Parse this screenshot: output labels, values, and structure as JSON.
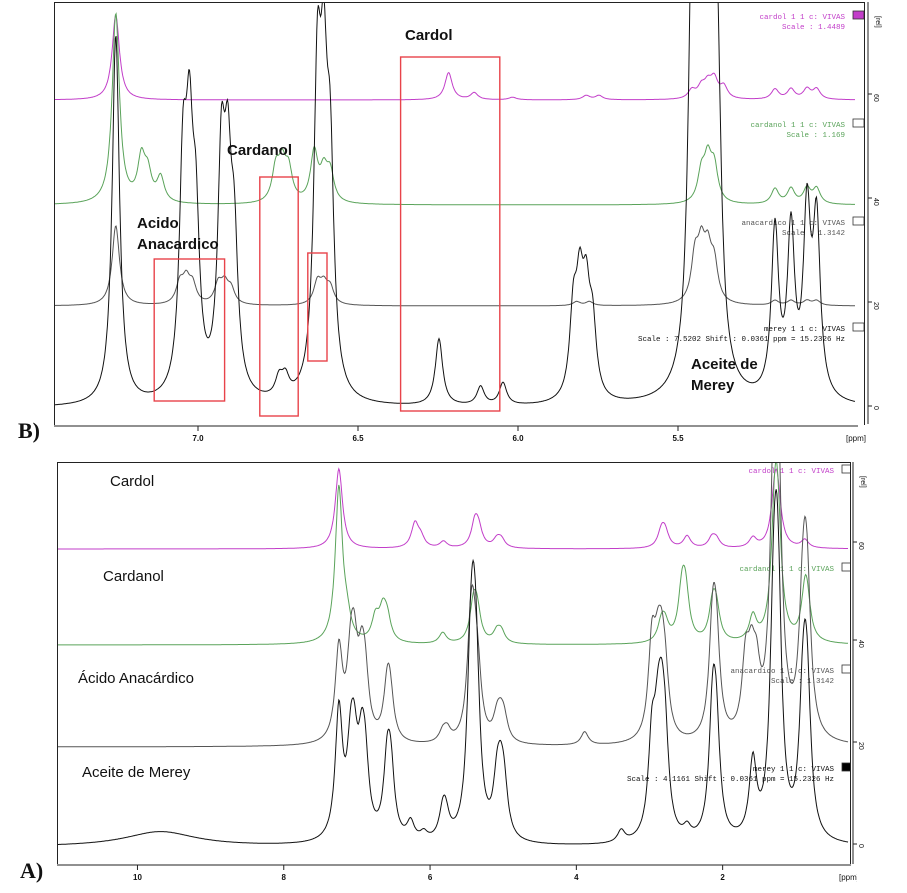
{
  "panel_labels": {
    "b": "B)",
    "a": "A)"
  },
  "colors": {
    "cardol": "#c23ec9",
    "cardanol": "#5aa35a",
    "anacardico": "#555555",
    "merey": "#111111",
    "highlight": "#e8434a"
  },
  "icons": [
    "legend-box-icon"
  ],
  "chart_data": [
    {
      "type": "line",
      "panel": "B",
      "xlabel": "[ppm]",
      "ylabel": "[rel]",
      "xlim": [
        7.45,
        4.95
      ],
      "x_ticks": [
        "7.0",
        "6.5",
        "6.0",
        "5.5"
      ],
      "x_tick_values": [
        7.0,
        6.5,
        6.0,
        5.5
      ],
      "y_ticks": [
        "0",
        "20",
        "40",
        "60"
      ],
      "grid": false,
      "stacked": true,
      "series": [
        {
          "name": "Cardol",
          "stamp": "cardol  1  1  c:  VIVAS",
          "scale": "Scale : 1.4489",
          "peaks": [
            [
              7.26,
              1.0
            ],
            [
              6.22,
              0.32
            ],
            [
              6.14,
              0.08
            ],
            [
              6.02,
              0.03
            ],
            [
              5.79,
              0.05
            ],
            [
              5.75,
              0.05
            ],
            [
              5.46,
              0.1
            ],
            [
              5.43,
              0.13
            ],
            [
              5.41,
              0.16
            ],
            [
              5.39,
              0.22
            ],
            [
              5.36,
              0.14
            ],
            [
              5.2,
              0.12
            ],
            [
              5.15,
              0.12
            ],
            [
              5.1,
              0.12
            ],
            [
              5.07,
              0.12
            ]
          ]
        },
        {
          "name": "Cardanol",
          "stamp": "cardanol  1  1  c:  VIVAS",
          "scale": "Scale : 1.169",
          "peaks": [
            [
              7.26,
              1.0
            ],
            [
              7.18,
              0.22
            ],
            [
              7.16,
              0.14
            ],
            [
              7.12,
              0.13
            ],
            [
              6.76,
              0.17
            ],
            [
              6.74,
              0.18
            ],
            [
              6.72,
              0.16
            ],
            [
              6.64,
              0.26
            ],
            [
              6.61,
              0.15
            ],
            [
              6.59,
              0.15
            ],
            [
              5.43,
              0.15
            ],
            [
              5.41,
              0.21
            ],
            [
              5.39,
              0.18
            ],
            [
              5.2,
              0.08
            ],
            [
              5.15,
              0.08
            ],
            [
              5.1,
              0.08
            ],
            [
              5.07,
              0.08
            ]
          ]
        },
        {
          "name": "Acido Anacardico",
          "stamp": "anacardico  1  1  c:  VIVAS",
          "scale": "Scale : 1.3142",
          "peaks": [
            [
              7.26,
              1.0
            ],
            [
              7.06,
              0.25
            ],
            [
              7.04,
              0.28
            ],
            [
              7.02,
              0.23
            ],
            [
              6.94,
              0.24
            ],
            [
              6.92,
              0.23
            ],
            [
              6.9,
              0.18
            ],
            [
              6.63,
              0.27
            ],
            [
              6.61,
              0.22
            ],
            [
              6.59,
              0.2
            ],
            [
              5.82,
              0.05
            ],
            [
              5.78,
              0.05
            ],
            [
              5.45,
              0.55
            ],
            [
              5.43,
              0.6
            ],
            [
              5.41,
              0.55
            ],
            [
              5.39,
              0.45
            ],
            [
              5.2,
              0.06
            ],
            [
              5.15,
              0.06
            ],
            [
              5.1,
              0.06
            ],
            [
              5.07,
              0.06
            ]
          ]
        },
        {
          "name": "Aceite de Merey",
          "stamp": "merey  1  1  c:  VIVAS",
          "scale": "Scale : 7.5202 Shift : 0.0361 ppm = 15.2326 Hz",
          "peaks": [
            [
              7.26,
              1.0
            ],
            [
              7.05,
              0.56
            ],
            [
              7.03,
              0.58
            ],
            [
              7.01,
              0.4
            ],
            [
              6.93,
              0.58
            ],
            [
              6.91,
              0.5
            ],
            [
              6.89,
              0.36
            ],
            [
              6.75,
              0.05
            ],
            [
              6.73,
              0.05
            ],
            [
              6.63,
              0.78
            ],
            [
              6.61,
              0.68
            ],
            [
              6.59,
              0.55
            ],
            [
              6.25,
              0.18
            ],
            [
              6.12,
              0.05
            ],
            [
              6.05,
              0.06
            ],
            [
              5.83,
              0.22
            ],
            [
              5.81,
              0.26
            ],
            [
              5.79,
              0.24
            ],
            [
              5.77,
              0.18
            ],
            [
              5.46,
              0.9
            ],
            [
              5.44,
              0.95
            ],
            [
              5.42,
              0.95
            ],
            [
              5.4,
              0.9
            ],
            [
              5.38,
              0.7
            ],
            [
              5.2,
              0.45
            ],
            [
              5.15,
              0.44
            ],
            [
              5.1,
              0.48
            ],
            [
              5.07,
              0.46
            ]
          ]
        }
      ],
      "annotations": [
        "Cardol",
        "Cardanol",
        "Acido Anacardico",
        "Aceite de Merey"
      ]
    },
    {
      "type": "line",
      "panel": "A",
      "xlabel": "[ppm]",
      "ylabel": "[rel]",
      "xlim": [
        11.1,
        0.3
      ],
      "x_ticks": [
        "10",
        "8",
        "6",
        "4",
        "2"
      ],
      "x_tick_values": [
        10,
        8,
        6,
        4,
        2
      ],
      "y_ticks": [
        "0",
        "20",
        "40",
        "60"
      ],
      "grid": false,
      "stacked": true,
      "series": [
        {
          "name": "Cardol",
          "stamp": "cardol  1  1  c:  VIVAS",
          "peaks": [
            [
              7.26,
              1.0
            ],
            [
              6.22,
              0.3
            ],
            [
              6.14,
              0.12
            ],
            [
              5.83,
              0.08
            ],
            [
              5.4,
              0.3
            ],
            [
              5.35,
              0.2
            ],
            [
              5.1,
              0.1
            ],
            [
              5.04,
              0.1
            ],
            [
              2.85,
              0.2
            ],
            [
              2.8,
              0.18
            ],
            [
              2.5,
              0.15
            ],
            [
              2.16,
              0.12
            ],
            [
              2.1,
              0.1
            ],
            [
              1.6,
              0.12
            ],
            [
              1.3,
              0.6
            ],
            [
              1.26,
              0.5
            ],
            [
              0.89,
              0.1
            ]
          ]
        },
        {
          "name": "Cardanol",
          "stamp": "cardanol  1  1  c:  VIVAS",
          "peaks": [
            [
              7.26,
              1.0
            ],
            [
              7.15,
              0.12
            ],
            [
              6.76,
              0.15
            ],
            [
              6.66,
              0.18
            ],
            [
              6.6,
              0.14
            ],
            [
              5.84,
              0.07
            ],
            [
              5.42,
              0.23
            ],
            [
              5.37,
              0.18
            ],
            [
              5.1,
              0.07
            ],
            [
              5.04,
              0.07
            ],
            [
              2.85,
              0.12
            ],
            [
              2.8,
              0.1
            ],
            [
              2.57,
              0.3
            ],
            [
              2.52,
              0.28
            ],
            [
              2.15,
              0.22
            ],
            [
              2.1,
              0.18
            ],
            [
              1.6,
              0.16
            ],
            [
              1.3,
              0.7
            ],
            [
              1.26,
              0.6
            ],
            [
              0.89,
              0.25
            ],
            [
              0.86,
              0.2
            ]
          ]
        },
        {
          "name": "Ácido Anacardico",
          "display": "Ácido Anacárdico",
          "stamp": "anacardico  1  1  c:  VIVAS",
          "scale": "Scale : 1.3142",
          "peaks": [
            [
              7.26,
              0.55
            ],
            [
              7.1,
              0.38
            ],
            [
              7.05,
              0.42
            ],
            [
              6.95,
              0.36
            ],
            [
              6.9,
              0.3
            ],
            [
              6.6,
              0.28
            ],
            [
              6.56,
              0.24
            ],
            [
              5.84,
              0.06
            ],
            [
              5.78,
              0.07
            ],
            [
              5.46,
              0.5
            ],
            [
              5.42,
              0.45
            ],
            [
              5.36,
              0.3
            ],
            [
              5.1,
              0.12
            ],
            [
              5.05,
              0.12
            ],
            [
              5.0,
              0.12
            ],
            [
              3.9,
              0.08
            ],
            [
              2.98,
              0.55
            ],
            [
              2.9,
              0.35
            ],
            [
              2.85,
              0.35
            ],
            [
              2.8,
              0.3
            ],
            [
              2.15,
              0.62
            ],
            [
              2.1,
              0.5
            ],
            [
              1.7,
              0.42
            ],
            [
              1.62,
              0.35
            ],
            [
              1.55,
              0.3
            ],
            [
              1.32,
              1.0
            ],
            [
              1.28,
              0.95
            ],
            [
              1.25,
              0.85
            ],
            [
              0.92,
              0.6
            ],
            [
              0.88,
              0.55
            ],
            [
              0.85,
              0.45
            ]
          ]
        },
        {
          "name": "Aceite de Merey",
          "stamp": "merey  1  1  c:  VIVAS",
          "scale": "Scale : 4.1161 Shift : 0.0361 ppm = 15.2326 Hz",
          "peaks": [
            [
              9.7,
              0.1
            ],
            [
              7.26,
              0.85
            ],
            [
              7.1,
              0.45
            ],
            [
              7.05,
              0.45
            ],
            [
              6.95,
              0.45
            ],
            [
              6.9,
              0.4
            ],
            [
              6.6,
              0.45
            ],
            [
              6.55,
              0.4
            ],
            [
              6.28,
              0.12
            ],
            [
              6.1,
              0.05
            ],
            [
              5.84,
              0.16
            ],
            [
              5.8,
              0.14
            ],
            [
              5.46,
              0.85
            ],
            [
              5.42,
              0.8
            ],
            [
              5.38,
              0.7
            ],
            [
              5.1,
              0.3
            ],
            [
              5.05,
              0.3
            ],
            [
              5.0,
              0.28
            ],
            [
              3.4,
              0.08
            ],
            [
              2.98,
              0.6
            ],
            [
              2.9,
              0.5
            ],
            [
              2.85,
              0.55
            ],
            [
              2.8,
              0.5
            ],
            [
              2.5,
              0.07
            ],
            [
              2.15,
              0.78
            ],
            [
              2.1,
              0.6
            ],
            [
              1.6,
              0.5
            ],
            [
              1.32,
              1.0
            ],
            [
              1.28,
              0.95
            ],
            [
              1.25,
              0.85
            ],
            [
              0.92,
              0.65
            ],
            [
              0.88,
              0.6
            ],
            [
              0.85,
              0.5
            ]
          ]
        }
      ],
      "annotations": [
        "Cardol",
        "Cardanol",
        "Ácido Anacárdico",
        "Aceite de Merey"
      ]
    }
  ]
}
